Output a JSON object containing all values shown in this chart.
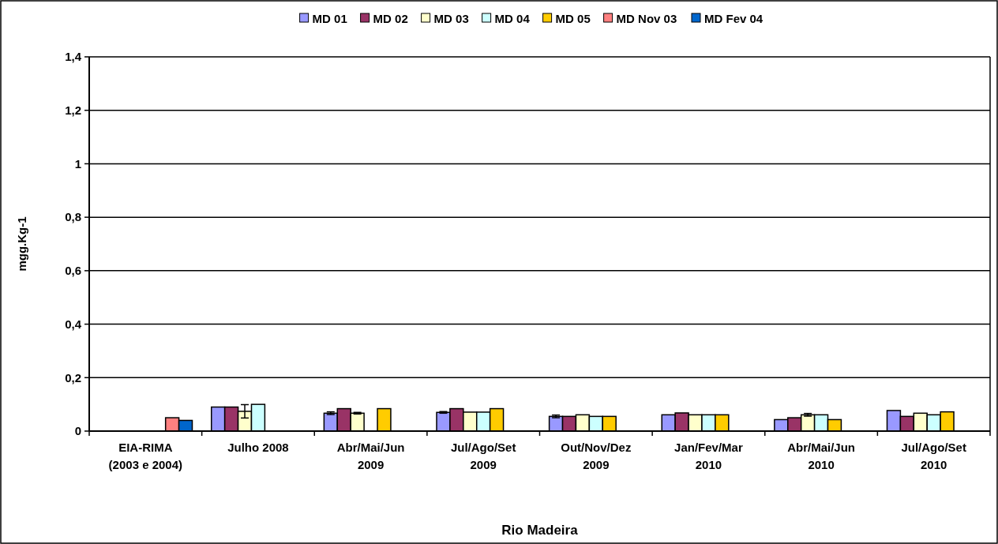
{
  "chart_data": {
    "type": "bar",
    "xlabel": "Rio Madeira",
    "ylabel": "mgg.Kg-1",
    "categories": [
      "EIA-RIMA\n(2003 e 2004)",
      "Julho 2008",
      "Abr/Mai/Jun\n2009",
      "Jul/Ago/Set\n2009",
      "Out/Nov/Dez\n2009",
      "Jan/Fev/Mar\n2010",
      "Abr/Mai/Jun\n2010",
      "Jul/Ago/Set\n2010"
    ],
    "series": [
      {
        "name": "MD 01",
        "color": "#9999ff",
        "values": [
          null,
          0.09,
          0.067,
          0.07,
          0.055,
          0.061,
          0.043,
          0.077
        ],
        "errors": [
          null,
          null,
          0.005,
          0.003,
          0.005,
          null,
          null,
          null
        ]
      },
      {
        "name": "MD 02",
        "color": "#993366",
        "values": [
          null,
          0.09,
          0.084,
          0.084,
          0.055,
          0.068,
          0.05,
          0.055
        ]
      },
      {
        "name": "MD 03",
        "color": "#ffffcc",
        "values": [
          null,
          0.074,
          0.067,
          0.071,
          0.061,
          0.061,
          0.061,
          0.067
        ],
        "errors": [
          null,
          0.025,
          0.003,
          null,
          null,
          null,
          0.005,
          null
        ]
      },
      {
        "name": "MD 04",
        "color": "#ccffff",
        "values": [
          null,
          0.1,
          null,
          0.071,
          0.055,
          0.061,
          0.061,
          0.061
        ]
      },
      {
        "name": "MD 05",
        "color": "#ffcc00",
        "values": [
          null,
          null,
          0.084,
          0.084,
          0.055,
          0.061,
          0.043,
          0.072
        ]
      },
      {
        "name": "MD Nov 03",
        "color": "#ff8080",
        "values": [
          0.05,
          null,
          null,
          null,
          null,
          null,
          null,
          null
        ]
      },
      {
        "name": "MD Fev 04",
        "color": "#0066cc",
        "values": [
          0.04,
          null,
          null,
          null,
          null,
          null,
          null,
          null
        ]
      }
    ],
    "ylim": [
      0,
      1.4
    ],
    "yticks": [
      {
        "value": 0,
        "label": "0"
      },
      {
        "value": 0.2,
        "label": "0,2"
      },
      {
        "value": 0.4,
        "label": "0,4"
      },
      {
        "value": 0.6,
        "label": "0,6"
      },
      {
        "value": 0.8,
        "label": "0,8"
      },
      {
        "value": 1,
        "label": "1"
      },
      {
        "value": 1.2,
        "label": "1,2"
      },
      {
        "value": 1.4,
        "label": "1,4"
      }
    ],
    "grid": "y",
    "legend": "top"
  }
}
